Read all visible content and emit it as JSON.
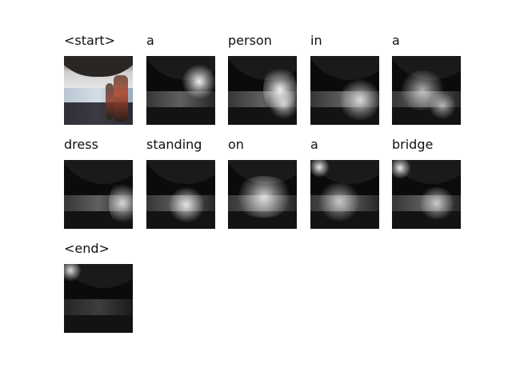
{
  "tokens": [
    {
      "word": "<start>"
    },
    {
      "word": "a"
    },
    {
      "word": "person"
    },
    {
      "word": "in"
    },
    {
      "word": "a"
    },
    {
      "word": "dress"
    },
    {
      "word": "standing"
    },
    {
      "word": "on"
    },
    {
      "word": "a"
    },
    {
      "word": "bridge"
    },
    {
      "word": "<end>"
    }
  ]
}
